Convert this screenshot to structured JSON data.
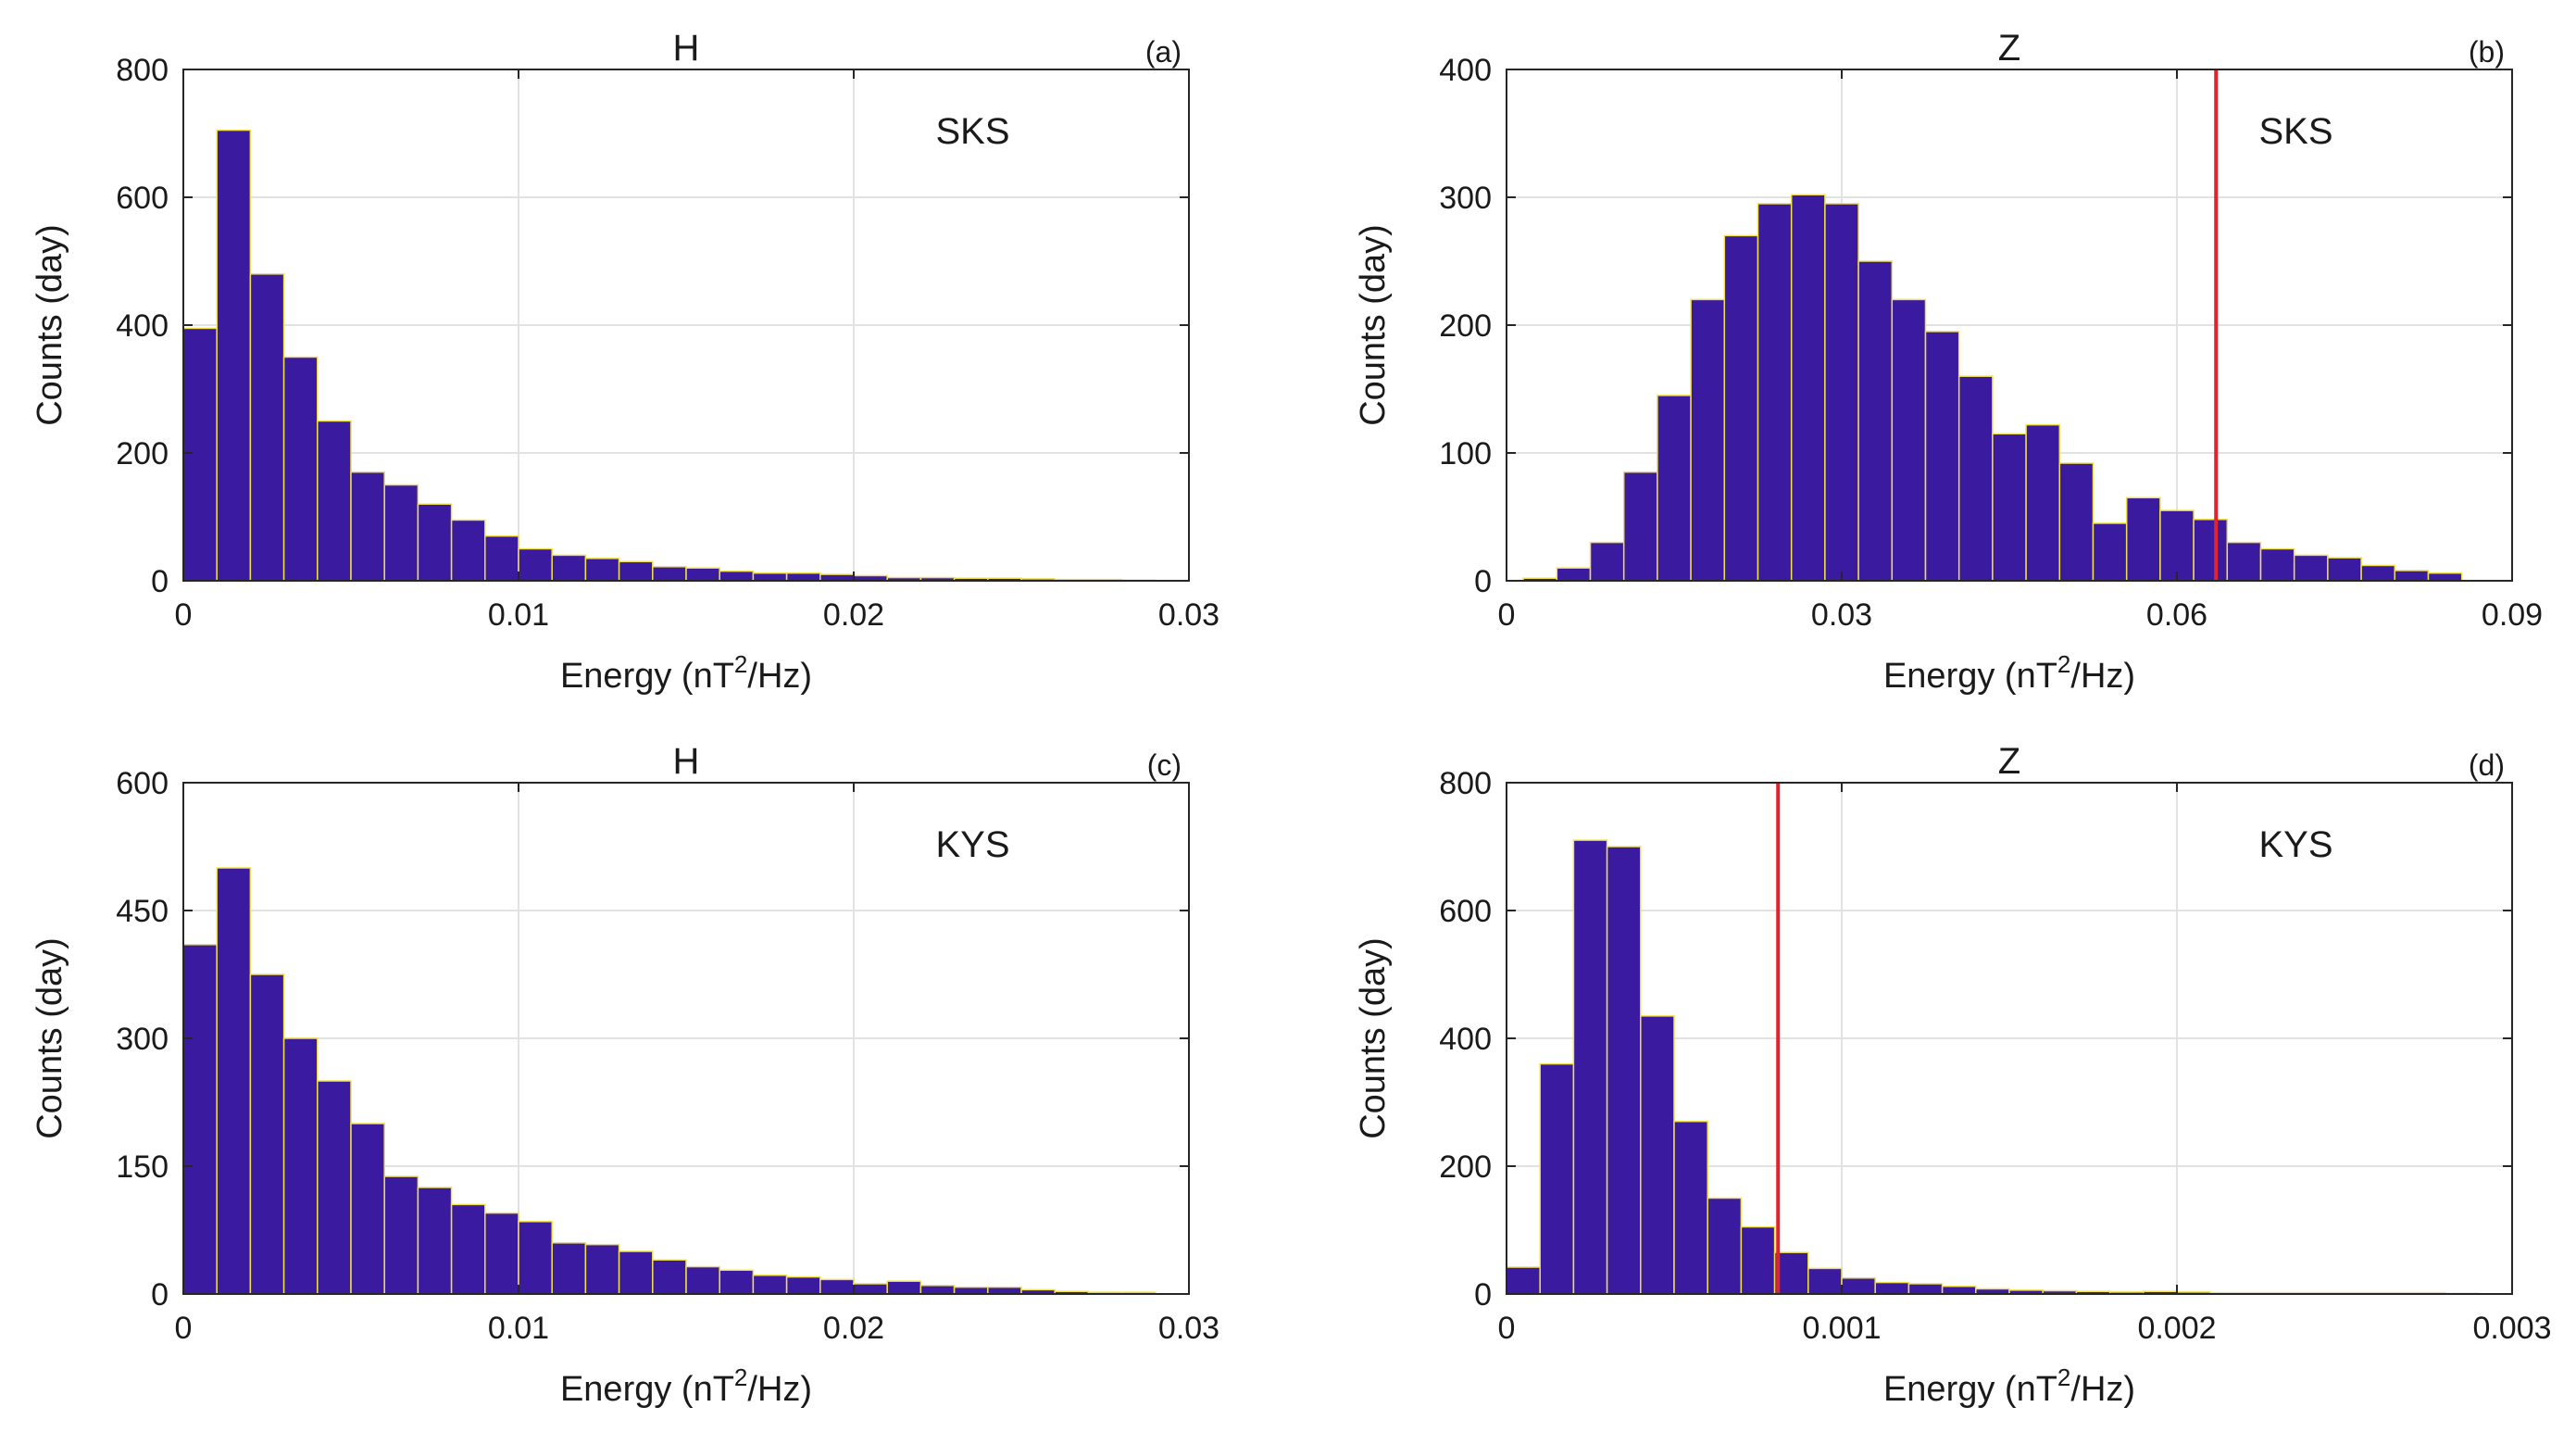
{
  "colors": {
    "bar_fill": "#3a1a9e",
    "bar_edge": "#f2e04a",
    "threshold_line": "#e0242e",
    "grid": "#e2e2e2",
    "axes": "#262626"
  },
  "chart_data": [
    {
      "type": "bar",
      "title": "H",
      "panel_label": "(a)",
      "station": "SKS",
      "xlabel_text": "Energy (nT",
      "xlabel_sup": "2",
      "xlabel_tail": "/Hz)",
      "ylabel": "Counts (day)",
      "xlim": [
        0,
        0.03
      ],
      "ylim": [
        0,
        800
      ],
      "xticks": [
        0,
        0.01,
        0.02,
        0.03
      ],
      "xtick_labels": [
        "0",
        "0.01",
        "0.02",
        "0.03"
      ],
      "yticks": [
        0,
        200,
        400,
        600,
        800
      ],
      "ytick_labels": [
        "0",
        "200",
        "400",
        "600",
        "800"
      ],
      "bin_start": 0.0005,
      "bin_width": 0.001,
      "values": [
        395,
        705,
        480,
        350,
        250,
        170,
        150,
        120,
        95,
        70,
        50,
        40,
        35,
        30,
        22,
        20,
        15,
        12,
        12,
        10,
        8,
        5,
        5,
        4,
        4,
        3,
        2,
        2,
        1
      ],
      "threshold": null,
      "grid": true
    },
    {
      "type": "bar",
      "title": "Z",
      "panel_label": "(b)",
      "station": "SKS",
      "xlabel_text": "Energy (nT",
      "xlabel_sup": "2",
      "xlabel_tail": "/Hz)",
      "ylabel": "Counts (day)",
      "xlim": [
        0,
        0.09
      ],
      "ylim": [
        0,
        400
      ],
      "xticks": [
        0,
        0.03,
        0.06,
        0.09
      ],
      "xtick_labels": [
        "0",
        "0.03",
        "0.06",
        "0.09"
      ],
      "yticks": [
        0,
        100,
        200,
        300,
        400
      ],
      "ytick_labels": [
        "0",
        "100",
        "200",
        "300",
        "400"
      ],
      "bin_start": 0.003,
      "bin_width": 0.003,
      "values": [
        2,
        10,
        30,
        85,
        145,
        220,
        270,
        295,
        302,
        295,
        250,
        220,
        195,
        160,
        115,
        122,
        92,
        45,
        65,
        55,
        48,
        30,
        25,
        20,
        18,
        12,
        8,
        6
      ],
      "threshold": 0.0635,
      "grid": true
    },
    {
      "type": "bar",
      "title": "H",
      "panel_label": "(c)",
      "station": "KYS",
      "xlabel_text": "Energy (nT",
      "xlabel_sup": "2",
      "xlabel_tail": "/Hz)",
      "ylabel": "Counts (day)",
      "xlim": [
        0,
        0.03
      ],
      "ylim": [
        0,
        600
      ],
      "xticks": [
        0,
        0.01,
        0.02,
        0.03
      ],
      "xtick_labels": [
        "0",
        "0.01",
        "0.02",
        "0.03"
      ],
      "yticks": [
        0,
        150,
        300,
        450,
        600
      ],
      "ytick_labels": [
        "0",
        "150",
        "300",
        "450",
        "600"
      ],
      "bin_start": 0.0005,
      "bin_width": 0.001,
      "values": [
        410,
        500,
        375,
        300,
        250,
        200,
        138,
        125,
        105,
        95,
        85,
        60,
        58,
        50,
        40,
        32,
        28,
        22,
        20,
        17,
        12,
        15,
        10,
        8,
        8,
        5,
        3,
        2,
        2
      ],
      "threshold": null,
      "grid": true
    },
    {
      "type": "bar",
      "title": "Z",
      "panel_label": "(d)",
      "station": "KYS",
      "xlabel_text": "Energy (nT",
      "xlabel_sup": "2",
      "xlabel_tail": "/Hz)",
      "ylabel": "Counts (day)",
      "xlim": [
        0,
        0.003
      ],
      "ylim": [
        0,
        800
      ],
      "xticks": [
        0,
        0.001,
        0.002,
        0.003
      ],
      "xtick_labels": [
        "0",
        "0.001",
        "0.002",
        "0.003"
      ],
      "yticks": [
        0,
        200,
        400,
        600,
        800
      ],
      "ytick_labels": [
        "0",
        "200",
        "400",
        "600",
        "800"
      ],
      "bin_start": 5e-05,
      "bin_width": 0.0001,
      "values": [
        42,
        360,
        710,
        700,
        435,
        270,
        150,
        105,
        65,
        40,
        25,
        18,
        16,
        12,
        8,
        6,
        5,
        4,
        3,
        4,
        3,
        2,
        2,
        2,
        2,
        2,
        2,
        2,
        1
      ],
      "threshold": 0.00081,
      "grid": true
    }
  ]
}
